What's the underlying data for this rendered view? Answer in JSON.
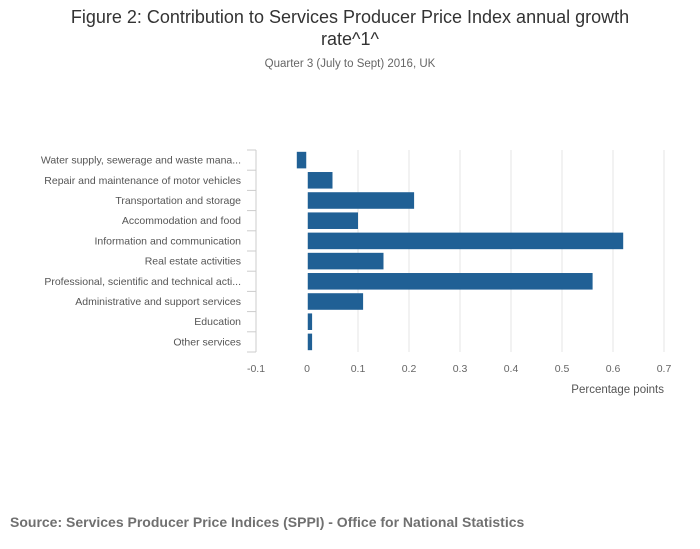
{
  "title": "Figure 2: Contribution to Services Producer Price Index annual growth rate^1^",
  "subtitle": "Quarter 3 (July to Sept) 2016, UK",
  "source": "Source: Services Producer Price Indices (SPPI) - Office for National Statistics",
  "colors": {
    "bar": "#206095",
    "grid": "#e5e5e5",
    "axis": "#cccccc"
  },
  "chart_data": {
    "type": "bar",
    "orientation": "horizontal",
    "categories": [
      "Water supply, sewerage and waste mana...",
      "Repair and maintenance of motor vehicles",
      "Transportation and storage",
      "Accommodation and food",
      "Information and communication",
      "Real estate activities",
      "Professional, scientific and technical acti...",
      "Administrative and support services",
      "Education",
      "Other services"
    ],
    "values": [
      -0.02,
      0.05,
      0.21,
      0.1,
      0.62,
      0.15,
      0.56,
      0.11,
      0.01,
      0.01
    ],
    "xlim": [
      -0.1,
      0.7
    ],
    "ticks": [
      -0.1,
      0,
      0.1,
      0.2,
      0.3,
      0.4,
      0.5,
      0.6,
      0.7
    ],
    "tick_labels": [
      "-0.1",
      "0",
      "0.1",
      "0.2",
      "0.3",
      "0.4",
      "0.5",
      "0.6",
      "0.7"
    ],
    "xlabel": "Percentage points",
    "ylabel": "",
    "grid": true
  }
}
